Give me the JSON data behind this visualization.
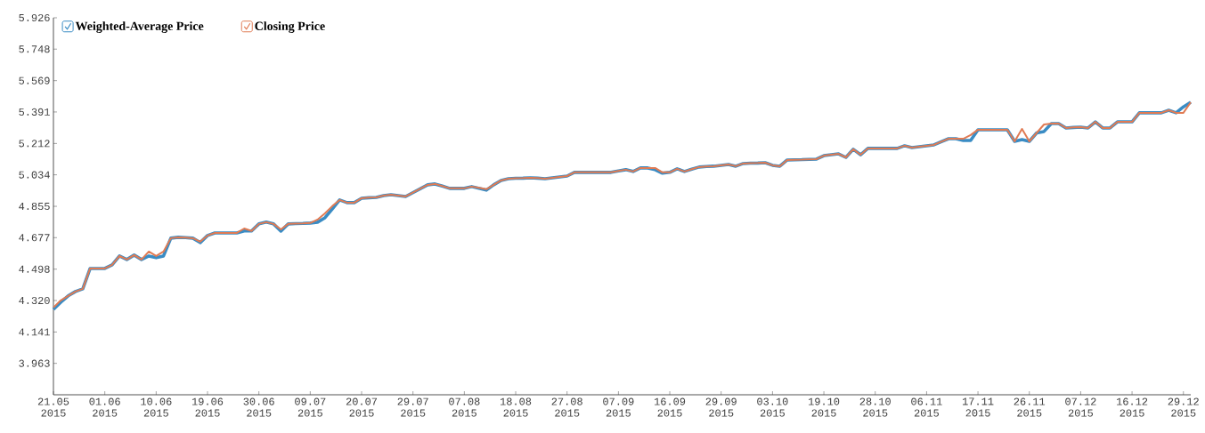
{
  "chart_data": {
    "type": "line",
    "categories": [
      "21.05 2015",
      null,
      null,
      null,
      null,
      null,
      null,
      "01.06 2015",
      null,
      null,
      null,
      null,
      null,
      null,
      "10.06 2015",
      null,
      null,
      null,
      null,
      null,
      null,
      "19.06 2015",
      null,
      null,
      null,
      null,
      null,
      null,
      "30.06 2015",
      null,
      null,
      null,
      null,
      null,
      null,
      "09.07 2015",
      null,
      null,
      null,
      null,
      null,
      null,
      "20.07 2015",
      null,
      null,
      null,
      null,
      null,
      null,
      "29.07 2015",
      null,
      null,
      null,
      null,
      null,
      null,
      "07.08 2015",
      null,
      null,
      null,
      null,
      null,
      null,
      "18.08 2015",
      null,
      null,
      null,
      null,
      null,
      null,
      "27.08 2015",
      null,
      null,
      null,
      null,
      null,
      null,
      "07.09 2015",
      null,
      null,
      null,
      null,
      null,
      null,
      "16.09 2015",
      null,
      null,
      null,
      null,
      null,
      null,
      "29.09 2015",
      null,
      null,
      null,
      null,
      null,
      null,
      "03.10 2015",
      null,
      null,
      null,
      null,
      null,
      null,
      "19.10 2015",
      null,
      null,
      null,
      null,
      null,
      null,
      "28.10 2015",
      null,
      null,
      null,
      null,
      null,
      null,
      "06.11 2015",
      null,
      null,
      null,
      null,
      null,
      null,
      "17.11 2015",
      null,
      null,
      null,
      null,
      null,
      null,
      "26.11 2015",
      null,
      null,
      null,
      null,
      null,
      null,
      "07.12 2015",
      null,
      null,
      null,
      null,
      null,
      null,
      "16.12 2015",
      null,
      null,
      null,
      null,
      null,
      null,
      "29.12 2015",
      null
    ],
    "series": [
      {
        "name": "Weighted-Average Price",
        "color": "#3a8cc4",
        "values": [
          4.27,
          4.31,
          4.346,
          4.371,
          4.386,
          4.502,
          4.502,
          4.502,
          4.523,
          4.573,
          4.553,
          4.578,
          4.553,
          4.573,
          4.563,
          4.573,
          4.674,
          4.679,
          4.677,
          4.674,
          4.649,
          4.689,
          4.704,
          4.704,
          4.704,
          4.704,
          4.715,
          4.715,
          4.755,
          4.765,
          4.755,
          4.714,
          4.755,
          4.757,
          4.758,
          4.76,
          4.765,
          4.79,
          4.84,
          4.891,
          4.876,
          4.876,
          4.901,
          4.904,
          4.906,
          4.916,
          4.921,
          4.916,
          4.911,
          4.933,
          4.955,
          4.977,
          4.982,
          4.97,
          4.957,
          4.957,
          4.957,
          4.967,
          4.957,
          4.947,
          4.977,
          5.002,
          5.012,
          5.014,
          5.015,
          5.017,
          5.015,
          5.012,
          5.017,
          5.022,
          5.027,
          5.048,
          5.048,
          5.048,
          5.048,
          5.048,
          5.048,
          5.056,
          5.063,
          5.053,
          5.073,
          5.073,
          5.063,
          5.043,
          5.048,
          5.068,
          5.053,
          5.066,
          5.078,
          5.081,
          5.083,
          5.088,
          5.093,
          5.083,
          5.098,
          5.1,
          5.101,
          5.103,
          5.088,
          5.083,
          5.118,
          5.119,
          5.12,
          5.122,
          5.123,
          5.143,
          5.148,
          5.153,
          5.133,
          5.179,
          5.148,
          5.184,
          5.184,
          5.184,
          5.184,
          5.184,
          5.199,
          5.189,
          5.194,
          5.199,
          5.204,
          5.222,
          5.239,
          5.239,
          5.229,
          5.229,
          5.29,
          5.29,
          5.29,
          5.29,
          5.29,
          5.224,
          5.234,
          5.224,
          5.272,
          5.28,
          5.325,
          5.325,
          5.3,
          5.303,
          5.305,
          5.3,
          5.335,
          5.3,
          5.3,
          5.335,
          5.335,
          5.335,
          5.386,
          5.386,
          5.386,
          5.386,
          5.401,
          5.386,
          5.42,
          5.446
        ]
      },
      {
        "name": "Closing Price",
        "color": "#e07b54",
        "values": [
          4.28,
          4.321,
          4.346,
          4.371,
          4.386,
          4.502,
          4.502,
          4.502,
          4.523,
          4.573,
          4.553,
          4.578,
          4.553,
          4.598,
          4.573,
          4.598,
          4.674,
          4.679,
          4.677,
          4.674,
          4.654,
          4.689,
          4.704,
          4.704,
          4.704,
          4.704,
          4.729,
          4.715,
          4.755,
          4.765,
          4.755,
          4.724,
          4.755,
          4.757,
          4.758,
          4.76,
          4.78,
          4.815,
          4.856,
          4.891,
          4.876,
          4.876,
          4.901,
          4.904,
          4.906,
          4.916,
          4.921,
          4.916,
          4.911,
          4.933,
          4.955,
          4.977,
          4.982,
          4.97,
          4.957,
          4.957,
          4.957,
          4.967,
          4.96,
          4.952,
          4.977,
          5.002,
          5.012,
          5.014,
          5.015,
          5.017,
          5.015,
          5.012,
          5.017,
          5.022,
          5.027,
          5.048,
          5.048,
          5.048,
          5.048,
          5.048,
          5.048,
          5.056,
          5.063,
          5.053,
          5.073,
          5.073,
          5.073,
          5.048,
          5.048,
          5.068,
          5.053,
          5.066,
          5.078,
          5.081,
          5.083,
          5.088,
          5.093,
          5.083,
          5.098,
          5.1,
          5.101,
          5.103,
          5.088,
          5.083,
          5.118,
          5.119,
          5.12,
          5.122,
          5.123,
          5.143,
          5.148,
          5.153,
          5.133,
          5.179,
          5.148,
          5.184,
          5.184,
          5.184,
          5.184,
          5.184,
          5.199,
          5.189,
          5.194,
          5.199,
          5.204,
          5.222,
          5.239,
          5.239,
          5.239,
          5.26,
          5.29,
          5.29,
          5.29,
          5.29,
          5.29,
          5.224,
          5.295,
          5.224,
          5.272,
          5.32,
          5.325,
          5.325,
          5.3,
          5.303,
          5.305,
          5.3,
          5.335,
          5.3,
          5.3,
          5.335,
          5.335,
          5.335,
          5.386,
          5.386,
          5.386,
          5.386,
          5.401,
          5.386,
          5.386,
          5.446
        ]
      }
    ],
    "ylim": [
      3.7845,
      5.926
    ],
    "yticks": [
      3.963,
      4.141,
      {
        "value": 4.32,
        "label": "4.320"
      },
      4.498,
      4.677,
      4.855,
      5.034,
      5.212,
      5.391,
      5.569,
      5.748,
      5.926
    ],
    "legend": "top left",
    "marker": "none",
    "line_style": "solid",
    "grid": false
  }
}
